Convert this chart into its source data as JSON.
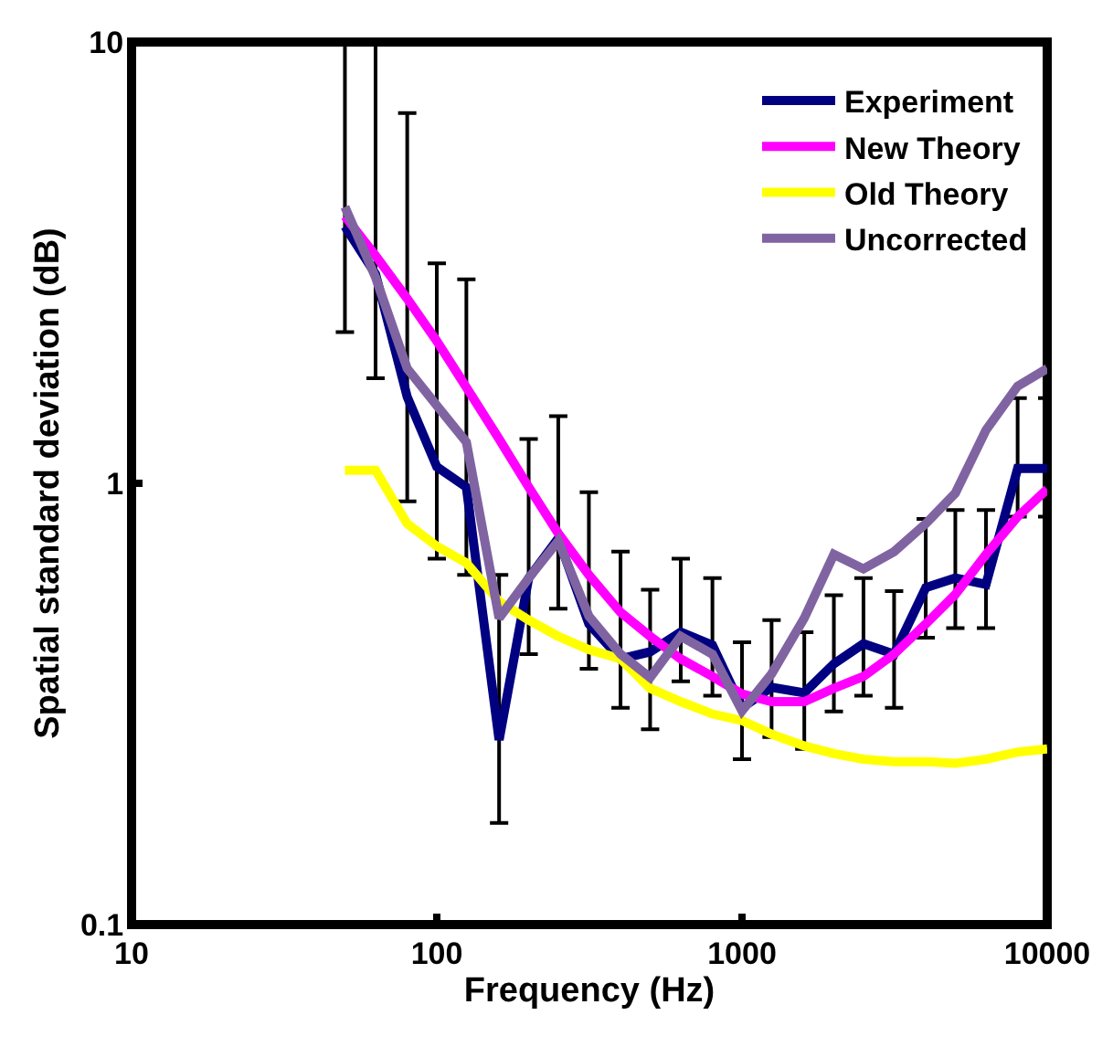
{
  "chart_data": {
    "type": "line",
    "xlabel": "Frequency (Hz)",
    "ylabel": "Spatial standard deviation (dB)",
    "x": [
      50,
      63,
      80,
      100,
      125,
      160,
      200,
      250,
      315,
      400,
      500,
      630,
      800,
      1000,
      1250,
      1600,
      2000,
      2500,
      3150,
      4000,
      5000,
      6300,
      8000,
      10000
    ],
    "series": [
      {
        "name": "Experiment",
        "color": "#000080",
        "values": [
          3.82,
          2.98,
          1.57,
          1.09,
          0.98,
          0.262,
          0.61,
          0.75,
          0.48,
          0.4,
          0.415,
          0.46,
          0.43,
          0.31,
          0.345,
          0.335,
          0.39,
          0.433,
          0.41,
          0.58,
          0.61,
          0.59,
          1.08,
          1.08
        ],
        "errors": [
          [
            2.2,
            10
          ],
          [
            1.73,
            10
          ],
          [
            0.91,
            6.9
          ],
          [
            0.675,
            3.15
          ],
          [
            0.62,
            2.9
          ],
          [
            0.17,
            0.62
          ],
          [
            0.41,
            1.26
          ],
          [
            0.52,
            1.42
          ],
          [
            0.38,
            0.955
          ],
          [
            0.31,
            0.7
          ],
          [
            0.277,
            0.574
          ],
          [
            0.356,
            0.675
          ],
          [
            0.33,
            0.61
          ],
          [
            0.237,
            0.436
          ],
          [
            0.266,
            0.49
          ],
          [
            0.25,
            0.46
          ],
          [
            0.304,
            0.558
          ],
          [
            0.33,
            0.61
          ],
          [
            0.31,
            0.57
          ],
          [
            0.447,
            0.83
          ],
          [
            0.47,
            0.87
          ],
          [
            0.47,
            0.87
          ],
          [
            0.84,
            1.56
          ],
          [
            0.84,
            1.56
          ]
        ]
      },
      {
        "name": "New Theory",
        "color": "#ff00ff",
        "values": [
          4.03,
          3.28,
          2.62,
          2.1,
          1.65,
          1.26,
          0.98,
          0.77,
          0.62,
          0.51,
          0.45,
          0.4,
          0.365,
          0.333,
          0.32,
          0.32,
          0.343,
          0.365,
          0.41,
          0.48,
          0.56,
          0.69,
          0.84,
          0.97
        ]
      },
      {
        "name": "Old Theory",
        "color": "#ffff00",
        "values": [
          1.07,
          1.07,
          0.81,
          0.72,
          0.66,
          0.54,
          0.49,
          0.45,
          0.42,
          0.4,
          0.343,
          0.32,
          0.3,
          0.29,
          0.27,
          0.254,
          0.244,
          0.237,
          0.234,
          0.234,
          0.232,
          0.237,
          0.246,
          0.25
        ]
      },
      {
        "name": "Uncorrected",
        "color": "#8064a2",
        "values": [
          4.23,
          2.93,
          1.82,
          1.5,
          1.24,
          0.495,
          0.61,
          0.74,
          0.5,
          0.41,
          0.363,
          0.45,
          0.41,
          0.305,
          0.37,
          0.495,
          0.69,
          0.64,
          0.7,
          0.81,
          0.95,
          1.32,
          1.66,
          1.82
        ]
      }
    ],
    "log": "xy",
    "xlim": [
      10,
      10000
    ],
    "xticks": [
      10,
      100,
      1000,
      10000
    ],
    "ylim": [
      0.1,
      10
    ],
    "yticks": [
      0.1,
      1,
      10
    ],
    "grid": false,
    "legend": "top right",
    "marker": "none",
    "line_style": "solid"
  }
}
